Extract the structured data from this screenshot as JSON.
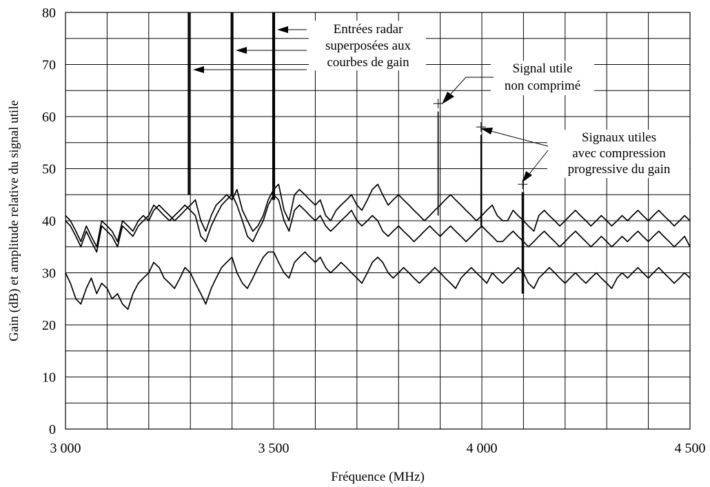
{
  "chart_data": {
    "type": "line",
    "xlabel": "Fréquence (MHz)",
    "ylabel": "Gain (dB) et amplitude relative du signal utile",
    "xlim": [
      3000,
      4500
    ],
    "ylim": [
      0,
      80
    ],
    "x_ticks": [
      {
        "value": 3000,
        "label": "3 000"
      },
      {
        "value": 3500,
        "label": "3 500"
      },
      {
        "value": 4000,
        "label": "4 000"
      },
      {
        "value": 4500,
        "label": "4 500"
      }
    ],
    "y_ticks": [
      {
        "value": 0,
        "label": "0"
      },
      {
        "value": 10,
        "label": "10"
      },
      {
        "value": 20,
        "label": "20"
      },
      {
        "value": 30,
        "label": "30"
      },
      {
        "value": 40,
        "label": "40"
      },
      {
        "value": 50,
        "label": "50"
      },
      {
        "value": 60,
        "label": "60"
      },
      {
        "value": 70,
        "label": "70"
      },
      {
        "value": 80,
        "label": "80"
      }
    ],
    "grid": {
      "x_step": 100,
      "y_step": 5
    },
    "series": [
      {
        "x": [
          3000,
          3012,
          3025,
          3037,
          3050,
          3062,
          3075,
          3087,
          3100,
          3112,
          3125,
          3137,
          3150,
          3162,
          3175,
          3187,
          3200,
          3212,
          3225,
          3237,
          3250,
          3262,
          3275,
          3287,
          3300,
          3312,
          3325,
          3337,
          3350,
          3362,
          3375,
          3387,
          3400,
          3412,
          3425,
          3437,
          3450,
          3462,
          3475,
          3487,
          3500,
          3512,
          3525,
          3537,
          3550,
          3562,
          3575,
          3587,
          3600,
          3612,
          3625,
          3637,
          3650,
          3662,
          3675,
          3687,
          3700,
          3712,
          3725,
          3737,
          3750,
          3762,
          3775,
          3787,
          3800,
          3812,
          3825,
          3837,
          3850,
          3862,
          3875,
          3887,
          3900,
          3912,
          3925,
          3937,
          3950,
          3962,
          3975,
          3987,
          4000,
          4012,
          4025,
          4037,
          4050,
          4062,
          4075,
          4087,
          4100,
          4112,
          4125,
          4137,
          4150,
          4162,
          4175,
          4187,
          4200,
          4212,
          4225,
          4237,
          4250,
          4262,
          4275,
          4287,
          4300,
          4312,
          4325,
          4337,
          4350,
          4362,
          4375,
          4387,
          4400,
          4412,
          4425,
          4437,
          4450,
          4462,
          4475,
          4487,
          4500
        ],
        "y": [
          41,
          40,
          38,
          36,
          39,
          37,
          35,
          40,
          39,
          38,
          36,
          40,
          39,
          38,
          40,
          41,
          40,
          42,
          43,
          42,
          41,
          40,
          41,
          42,
          43,
          44,
          40,
          38,
          41,
          43,
          44,
          45,
          44,
          46,
          42,
          40,
          38,
          39,
          41,
          44,
          46,
          47,
          42,
          40,
          45,
          46,
          45,
          44,
          43,
          44,
          41,
          40,
          42,
          43,
          44,
          45,
          43,
          42,
          44,
          46,
          47,
          45,
          43,
          44,
          45,
          44,
          43,
          42,
          41,
          40,
          41,
          42,
          43,
          44,
          45,
          44,
          43,
          42,
          41,
          40,
          41,
          42,
          43,
          41,
          40,
          40,
          42,
          41,
          40,
          39,
          38,
          41,
          42,
          41,
          40,
          39,
          40,
          41,
          42,
          41,
          40,
          39,
          40,
          41,
          40,
          39,
          40,
          41,
          40,
          41,
          42,
          41,
          40,
          41,
          42,
          41,
          40,
          39,
          40,
          41,
          40
        ]
      },
      {
        "x": [
          3000,
          3012,
          3025,
          3037,
          3050,
          3062,
          3075,
          3087,
          3100,
          3112,
          3125,
          3137,
          3150,
          3162,
          3175,
          3187,
          3200,
          3212,
          3225,
          3237,
          3250,
          3262,
          3275,
          3287,
          3300,
          3312,
          3325,
          3337,
          3350,
          3362,
          3375,
          3387,
          3400,
          3412,
          3425,
          3437,
          3450,
          3462,
          3475,
          3487,
          3500,
          3512,
          3525,
          3537,
          3550,
          3562,
          3575,
          3587,
          3600,
          3612,
          3625,
          3637,
          3650,
          3662,
          3675,
          3687,
          3700,
          3712,
          3725,
          3737,
          3750,
          3762,
          3775,
          3787,
          3800,
          3812,
          3825,
          3837,
          3850,
          3862,
          3875,
          3887,
          3900,
          3912,
          3925,
          3937,
          3950,
          3962,
          3975,
          3987,
          4000,
          4012,
          4025,
          4037,
          4050,
          4062,
          4075,
          4087,
          4100,
          4112,
          4125,
          4137,
          4150,
          4162,
          4175,
          4187,
          4200,
          4212,
          4225,
          4237,
          4250,
          4262,
          4275,
          4287,
          4300,
          4312,
          4325,
          4337,
          4350,
          4362,
          4375,
          4387,
          4400,
          4412,
          4425,
          4437,
          4450,
          4462,
          4475,
          4487,
          4500
        ],
        "y": [
          40,
          39,
          37,
          35,
          38,
          36,
          34,
          39,
          38,
          37,
          35,
          39,
          38,
          37,
          39,
          40,
          41,
          43,
          42,
          41,
          40,
          41,
          42,
          43,
          42,
          41,
          37,
          36,
          39,
          41,
          43,
          44,
          45,
          43,
          40,
          37,
          36,
          38,
          40,
          43,
          45,
          44,
          40,
          38,
          42,
          43,
          42,
          41,
          40,
          41,
          39,
          38,
          39,
          40,
          41,
          42,
          40,
          39,
          40,
          41,
          40,
          38,
          37,
          38,
          39,
          38,
          37,
          36,
          37,
          38,
          39,
          38,
          37,
          38,
          39,
          38,
          37,
          36,
          37,
          38,
          39,
          38,
          37,
          36,
          36,
          37,
          38,
          37,
          36,
          35,
          36,
          37,
          38,
          37,
          36,
          35,
          36,
          37,
          38,
          37,
          36,
          35,
          36,
          37,
          36,
          35,
          36,
          37,
          36,
          37,
          38,
          37,
          36,
          37,
          38,
          37,
          36,
          35,
          36,
          37,
          35
        ]
      },
      {
        "x": [
          3000,
          3012,
          3025,
          3037,
          3050,
          3062,
          3075,
          3087,
          3100,
          3112,
          3125,
          3137,
          3150,
          3162,
          3175,
          3187,
          3200,
          3212,
          3225,
          3237,
          3250,
          3262,
          3275,
          3287,
          3300,
          3312,
          3325,
          3337,
          3350,
          3362,
          3375,
          3387,
          3400,
          3412,
          3425,
          3437,
          3450,
          3462,
          3475,
          3487,
          3500,
          3512,
          3525,
          3537,
          3550,
          3562,
          3575,
          3587,
          3600,
          3612,
          3625,
          3637,
          3650,
          3662,
          3675,
          3687,
          3700,
          3712,
          3725,
          3737,
          3750,
          3762,
          3775,
          3787,
          3800,
          3812,
          3825,
          3837,
          3850,
          3862,
          3875,
          3887,
          3900,
          3912,
          3925,
          3937,
          3950,
          3962,
          3975,
          3987,
          4000,
          4012,
          4025,
          4037,
          4050,
          4062,
          4075,
          4087,
          4100,
          4112,
          4125,
          4137,
          4150,
          4162,
          4175,
          4187,
          4200,
          4212,
          4225,
          4237,
          4250,
          4262,
          4275,
          4287,
          4300,
          4312,
          4325,
          4337,
          4350,
          4362,
          4375,
          4387,
          4400,
          4412,
          4425,
          4437,
          4450,
          4462,
          4475,
          4487,
          4500
        ],
        "y": [
          30,
          28,
          25,
          24,
          27,
          29,
          26,
          28,
          27,
          25,
          26,
          24,
          23,
          26,
          28,
          29,
          30,
          32,
          31,
          29,
          28,
          27,
          29,
          31,
          30,
          28,
          26,
          24,
          27,
          29,
          31,
          32,
          33,
          30,
          28,
          27,
          29,
          31,
          33,
          34,
          34,
          32,
          30,
          29,
          32,
          33,
          34,
          33,
          32,
          33,
          31,
          30,
          31,
          32,
          31,
          30,
          29,
          28,
          30,
          32,
          33,
          32,
          30,
          29,
          30,
          31,
          30,
          29,
          28,
          29,
          30,
          31,
          30,
          29,
          28,
          27,
          29,
          30,
          31,
          30,
          29,
          28,
          30,
          29,
          28,
          29,
          30,
          31,
          30,
          28,
          27,
          29,
          30,
          31,
          30,
          29,
          28,
          29,
          30,
          29,
          28,
          29,
          30,
          29,
          28,
          27,
          29,
          30,
          29,
          30,
          31,
          30,
          29,
          30,
          31,
          30,
          29,
          28,
          29,
          30,
          29
        ]
      }
    ],
    "spikes": [
      {
        "x": 3295,
        "y_from": 45,
        "y_to": 80
      },
      {
        "x": 3298,
        "y_from": 45,
        "y_to": 80
      },
      {
        "x": 3398,
        "y_from": 45,
        "y_to": 80
      },
      {
        "x": 3402,
        "y_from": 45,
        "y_to": 80
      },
      {
        "x": 3498,
        "y_from": 44,
        "y_to": 80
      },
      {
        "x": 3502,
        "y_from": 44,
        "y_to": 80
      },
      {
        "x": 3895,
        "y_from": 41,
        "y_to": 61
      },
      {
        "x": 3998,
        "y_from": 39,
        "y_to": 56.5
      },
      {
        "x": 4097,
        "y_from": 26,
        "y_to": 45.5
      },
      {
        "x": 4100,
        "y_from": 26,
        "y_to": 45.5
      }
    ],
    "plus_markers": [
      {
        "x": 3895,
        "y": 62.5
      },
      {
        "x": 3998,
        "y": 58
      },
      {
        "x": 4098,
        "y": 47
      }
    ],
    "annotations": [
      {
        "lines": [
          "Entrées radar",
          "superposées aux",
          "courbes de gain"
        ]
      },
      {
        "lines": [
          "Signal utile",
          "non comprimé"
        ]
      },
      {
        "lines": [
          "Signaux utiles",
          "avec compression",
          "progressive du gain"
        ]
      }
    ]
  }
}
